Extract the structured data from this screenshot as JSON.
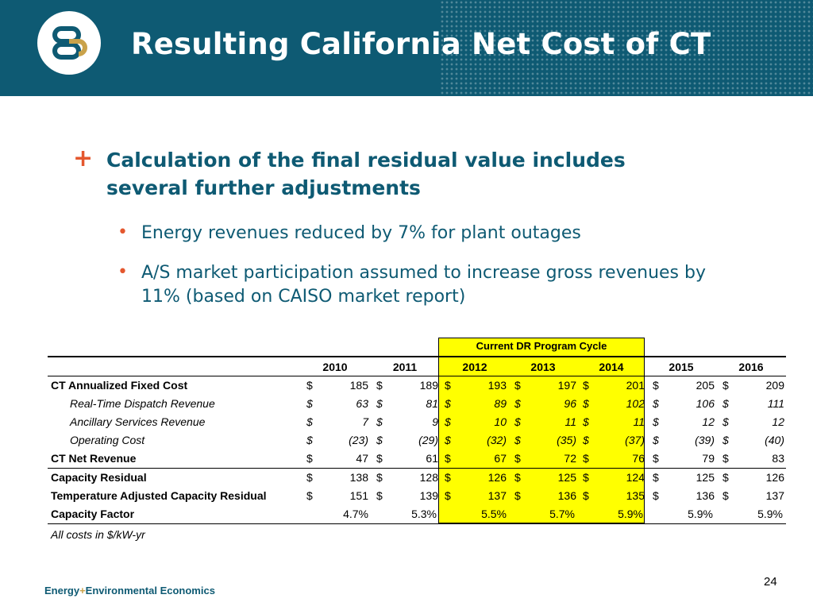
{
  "header": {
    "title": "Resulting California Net Cost of CT",
    "logo_name": "e3-logo"
  },
  "content": {
    "main_bullet": "Calculation of the final residual value includes several further adjustments",
    "sub_bullets": [
      "Energy revenues reduced by 7% for plant outages",
      "A/S market participation assumed to increase gross revenues by 11% (based on CAISO market report)"
    ]
  },
  "table": {
    "highlight_label": "Current DR Program Cycle",
    "highlight_color": "#ffff00",
    "years": [
      "2010",
      "2011",
      "2012",
      "2013",
      "2014",
      "2015",
      "2016"
    ],
    "rows": [
      {
        "label": "CT Annualized Fixed Cost",
        "style": "bold",
        "values": [
          "185",
          "189",
          "193",
          "197",
          "201",
          "205",
          "209"
        ]
      },
      {
        "label": "Real-Time Dispatch Revenue",
        "style": "italic",
        "values": [
          "63",
          "81",
          "89",
          "96",
          "102",
          "106",
          "111"
        ]
      },
      {
        "label": "Ancillary Services Revenue",
        "style": "italic",
        "values": [
          "7",
          "9",
          "10",
          "11",
          "11",
          "12",
          "12"
        ]
      },
      {
        "label": "Operating Cost",
        "style": "italic",
        "values": [
          "(23)",
          "(29)",
          "(32)",
          "(35)",
          "(37)",
          "(39)",
          "(40)"
        ]
      },
      {
        "label": "CT Net Revenue",
        "style": "bold",
        "values": [
          "47",
          "61",
          "67",
          "72",
          "76",
          "79",
          "83"
        ]
      },
      {
        "label": "Capacity Residual",
        "style": "bold",
        "values": [
          "138",
          "128",
          "126",
          "125",
          "124",
          "125",
          "126"
        ]
      },
      {
        "label": "Temperature Adjusted Capacity Residual",
        "style": "bold",
        "values": [
          "151",
          "139",
          "137",
          "136",
          "135",
          "136",
          "137"
        ]
      }
    ],
    "capacity_factor": {
      "label": "Capacity Factor",
      "values": [
        "4.7%",
        "5.3%",
        "5.5%",
        "5.7%",
        "5.9%",
        "5.9%",
        "5.9%"
      ]
    },
    "currency_symbol": "$",
    "note": "All costs in $/kW-yr"
  },
  "footer": {
    "org_part1": "Energy",
    "org_plus": "+",
    "org_part2": "Environmental Economics",
    "page_number": "24"
  },
  "colors": {
    "header_bg": "#0e5a73",
    "accent_orange": "#e4572e",
    "text_teal": "#0e5a73",
    "logo_gold": "#c9a24a"
  }
}
